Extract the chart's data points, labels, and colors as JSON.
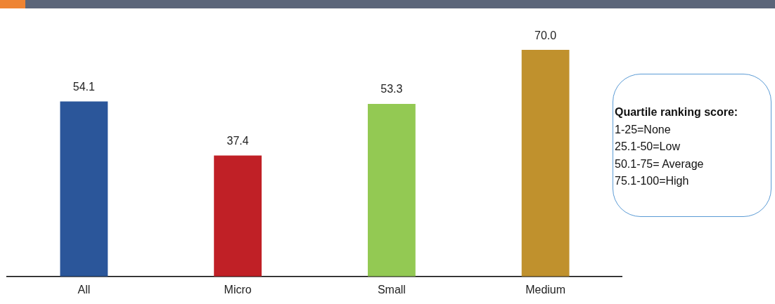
{
  "chart_data": {
    "type": "bar",
    "categories": [
      "All",
      "Micro",
      "Small",
      "Medium"
    ],
    "values": [
      54.1,
      37.4,
      53.3,
      70.0
    ],
    "colors": [
      "#2b569a",
      "#c02026",
      "#93c953",
      "#c0912d"
    ],
    "value_labels": [
      "54.1",
      "37.4",
      "53.3",
      "70.0"
    ],
    "grid": false,
    "legend": false,
    "annotations": [
      "Quartile ranking score:",
      "1-25=None",
      "25.1-50=Low",
      "50.1-75= Average",
      "75.1-100=High"
    ]
  }
}
